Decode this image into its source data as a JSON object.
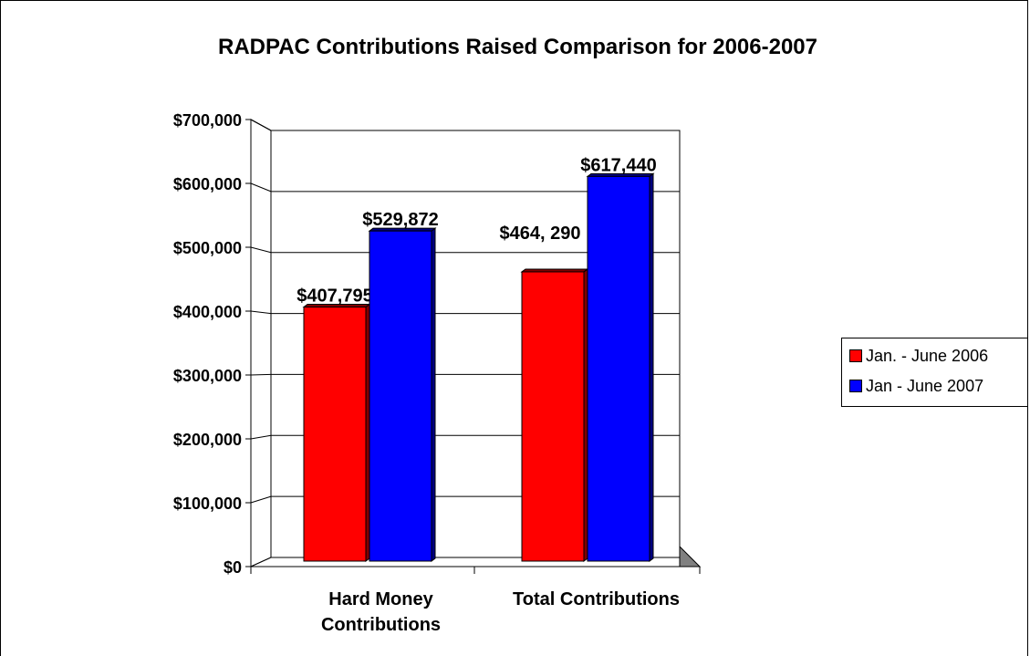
{
  "chart_data": {
    "type": "bar",
    "title": "RADPAC Contributions Raised Comparison for 2006-2007",
    "categories": [
      [
        "Hard Money",
        "Contributions"
      ],
      [
        "Total Contributions"
      ]
    ],
    "series": [
      {
        "name": "Jan. - June 2006",
        "color": "#ff0000",
        "values": [
          407795,
          464290
        ],
        "labels": [
          "$407,795",
          "$464, 290"
        ]
      },
      {
        "name": "Jan - June 2007",
        "color": "#0000ff",
        "values": [
          529872,
          617440
        ],
        "labels": [
          "$529,872",
          "$617,440"
        ]
      }
    ],
    "ylim": [
      0,
      700000
    ],
    "yticks": [
      0,
      100000,
      200000,
      300000,
      400000,
      500000,
      600000,
      700000
    ],
    "ytick_labels": [
      "$0",
      "$100,000",
      "$200,000",
      "$300,000",
      "$400,000",
      "$500,000",
      "$600,000",
      "$700,000"
    ],
    "grid": true,
    "three_d": true,
    "legend_position": "right"
  }
}
